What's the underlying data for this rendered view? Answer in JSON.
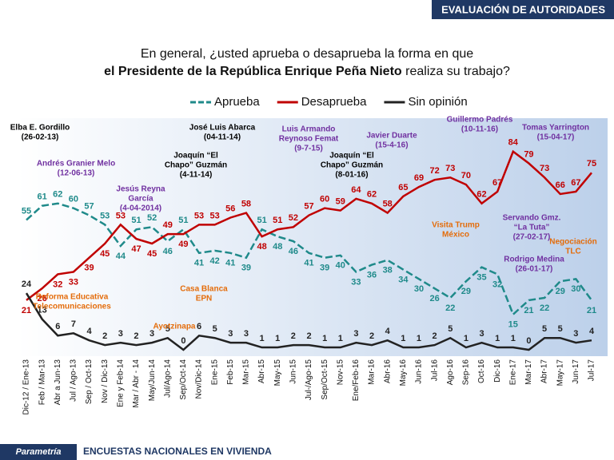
{
  "header": "EVALUACIÓN DE AUTORIDADES",
  "footer": {
    "brand": "Parametría",
    "text": "ENCUESTAS NACIONALES  EN VIVIENDA"
  },
  "chart_data": {
    "type": "line",
    "title_line1": "En general, ¿usted aprueba o desaprueba la forma en que",
    "title_line2_bold": "el Presidente de la República Enrique Peña Nieto",
    "title_line2_rest": " realiza su trabajo?",
    "categories": [
      "Dic-12 / Ene-13",
      "Feb / Mar-13",
      "Abr a Jun-13",
      "Jul / Ago-13",
      "Sep / Oct-13",
      "Nov / Dic-13",
      "Ene y Feb-14",
      "Mar / Abr - 14",
      "May/Jun-14",
      "Jul/Ago-14",
      "Sep/Oct-14",
      "Nov/Dic-14",
      "Ene-15",
      "Feb-15",
      "Mar-15",
      "Abr-15",
      "May-15",
      "Jun-15",
      "Jul-/Ago-15",
      "Sep/Oct-15",
      "Nov-15",
      "Ene/Feb-16",
      "Mar-16",
      "Abr-16",
      "May-16",
      "Jun-16",
      "Jul-16",
      "Ago-16",
      "Sep-16",
      "Oct-16",
      "Dic-16",
      "Ene-17",
      "Mar-17",
      "Abr-17",
      "May-17",
      "Jun-17",
      "Jul-17"
    ],
    "series": [
      {
        "name": "Aprueba",
        "color": "#1f8a8a",
        "dashed": true,
        "values": [
          55,
          61,
          62,
          60,
          57,
          53,
          44,
          51,
          52,
          46,
          51,
          41,
          42,
          41,
          39,
          51,
          48,
          46,
          41,
          39,
          40,
          33,
          36,
          38,
          34,
          30,
          26,
          22,
          29,
          35,
          32,
          15,
          21,
          22,
          29,
          30,
          21
        ]
      },
      {
        "name": "Desaprueba",
        "color": "#c00000",
        "dashed": false,
        "values": [
          21,
          26,
          32,
          33,
          39,
          45,
          53,
          47,
          45,
          49,
          49,
          53,
          53,
          56,
          58,
          48,
          51,
          52,
          57,
          60,
          59,
          64,
          62,
          58,
          65,
          69,
          72,
          73,
          70,
          62,
          67,
          84,
          79,
          73,
          66,
          67,
          75
        ]
      },
      {
        "name": "Sin opinión",
        "color": "#222222",
        "dashed": false,
        "values": [
          24,
          13,
          6,
          7,
          4,
          2,
          3,
          2,
          3,
          5,
          0,
          6,
          5,
          3,
          3,
          1,
          1,
          2,
          2,
          1,
          1,
          3,
          2,
          4,
          1,
          1,
          2,
          5,
          1,
          3,
          1,
          1,
          0,
          5,
          5,
          3,
          4
        ]
      }
    ],
    "ylim": [
      0,
      90
    ],
    "annotations": [
      {
        "lines": [
          "Elba E. Gordillo",
          "(26-02-13)"
        ],
        "color": "#000000"
      },
      {
        "lines": [
          "Andrés Granier Melo",
          "(12-06-13)"
        ],
        "color": "#7030a0"
      },
      {
        "lines": [
          "Jesús Reyna",
          "García",
          "(4-04-2014)"
        ],
        "color": "#7030a0"
      },
      {
        "lines": [
          "Joaquín “El",
          "Chapo” Guzmán",
          "(4-11-14)"
        ],
        "color": "#000000"
      },
      {
        "lines": [
          "José Luis Abarca",
          "(04-11-14)"
        ],
        "color": "#000000"
      },
      {
        "lines": [
          "Luis Armando",
          "Reynoso Femat",
          "(9-7-15)"
        ],
        "color": "#7030a0"
      },
      {
        "lines": [
          "Joaquín “El",
          "Chapo” Guzmán",
          "(8-01-16)"
        ],
        "color": "#000000"
      },
      {
        "lines": [
          "Javier Duarte",
          "(15-4-16)"
        ],
        "color": "#7030a0"
      },
      {
        "lines": [
          "Guillermo Padrés",
          "(10-11-16)"
        ],
        "color": "#7030a0"
      },
      {
        "lines": [
          "Tomas Yarrington",
          "(15-04-17)"
        ],
        "color": "#7030a0"
      },
      {
        "lines": [
          "Visita Trump",
          "México"
        ],
        "color": "#e46c0a"
      },
      {
        "lines": [
          "Servando Gmz.",
          "“La Tuta”",
          "(27-02-17)"
        ],
        "color": "#7030a0"
      },
      {
        "lines": [
          "Negociación",
          "TLC"
        ],
        "color": "#e46c0a"
      },
      {
        "lines": [
          "Rodrigo Medina",
          "(26-01-17)"
        ],
        "color": "#7030a0"
      },
      {
        "lines": [
          "Reforma Educativa",
          "Telecomunicaciones"
        ],
        "color": "#e46c0a"
      },
      {
        "lines": [
          "Casa Blanca",
          "EPN"
        ],
        "color": "#e46c0a"
      },
      {
        "lines": [
          "Ayotzinapa"
        ],
        "color": "#e46c0a"
      }
    ]
  }
}
